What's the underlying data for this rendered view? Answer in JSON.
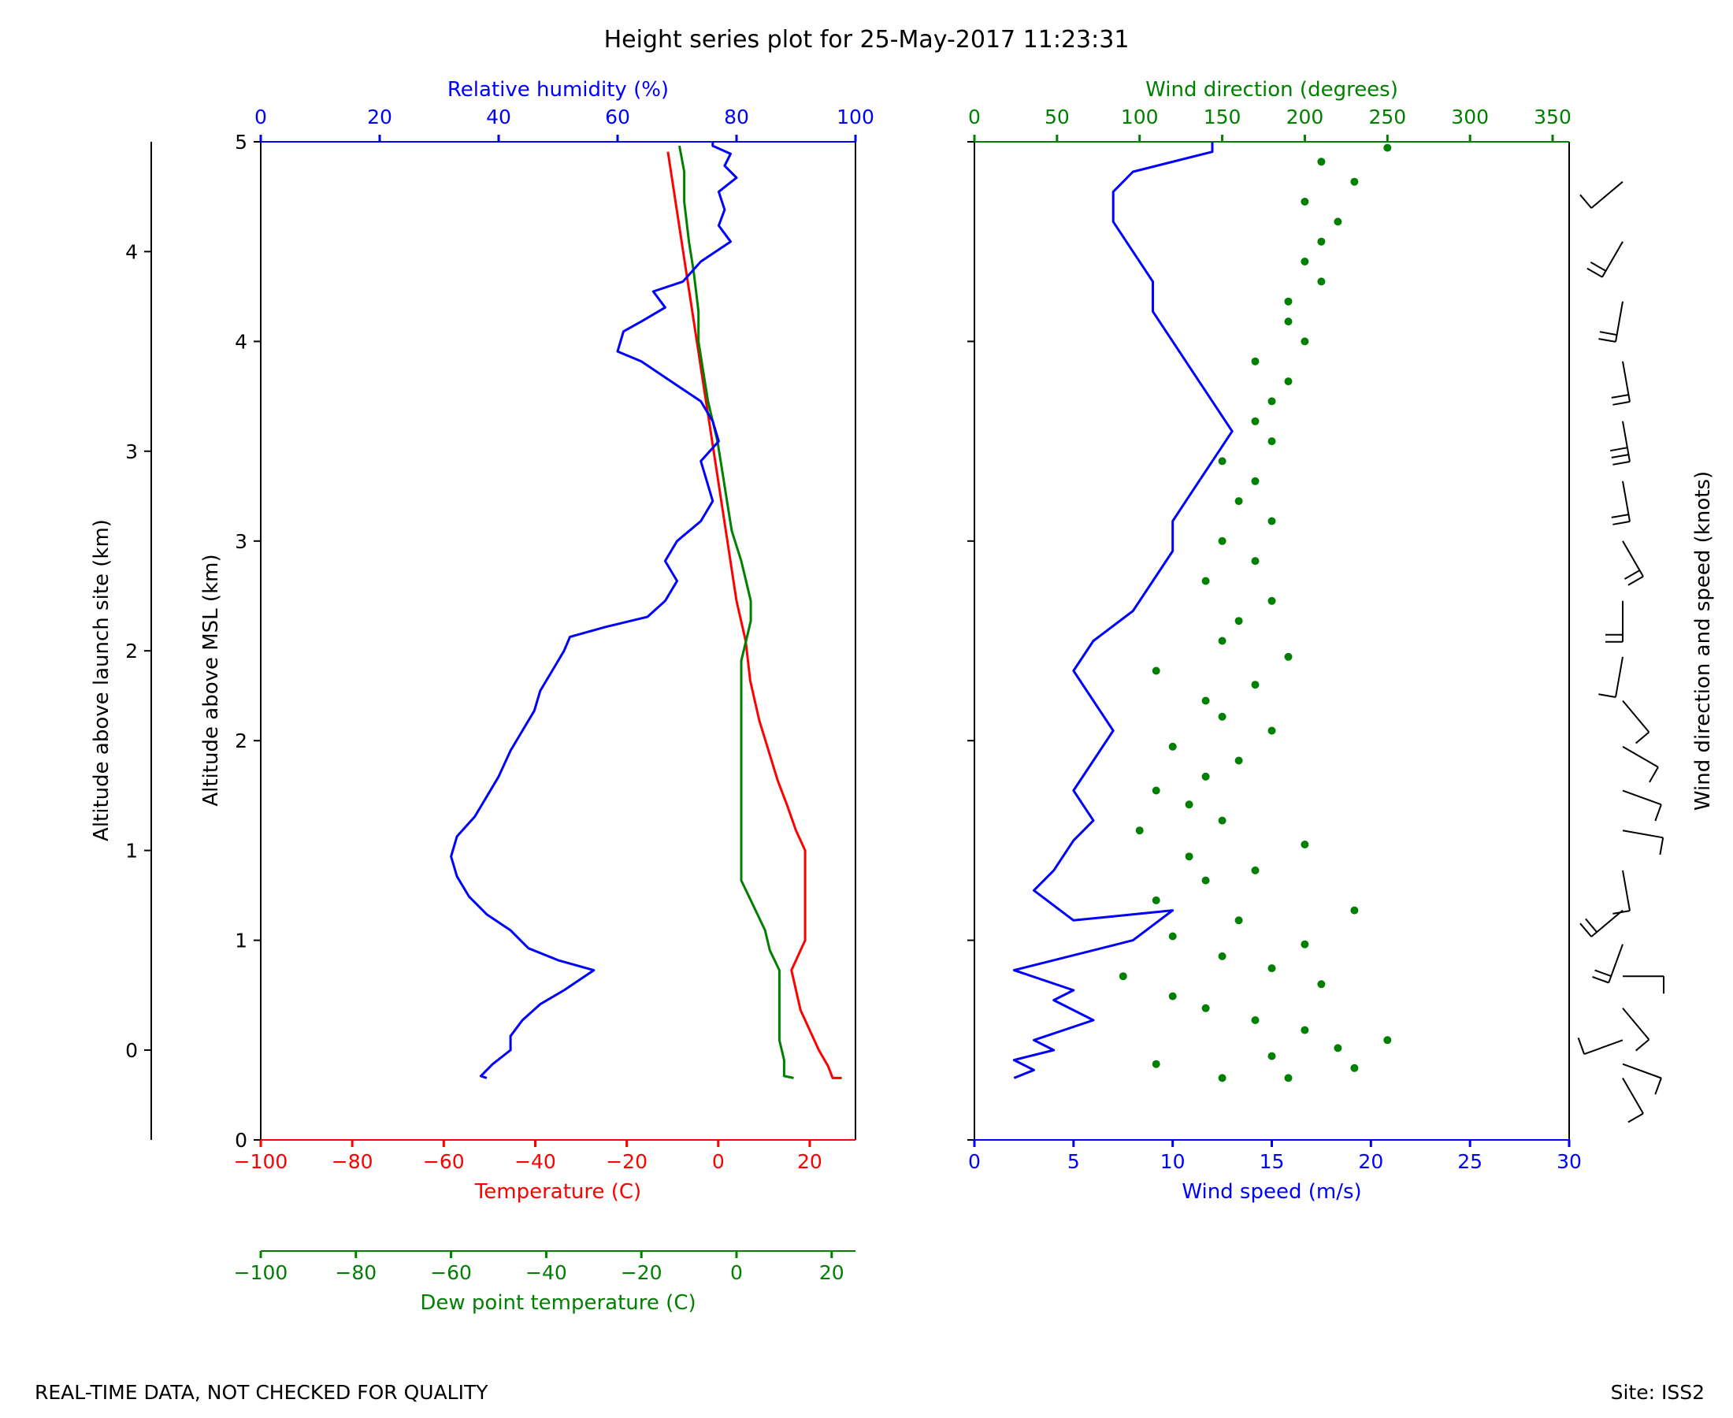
{
  "title": "Height series plot for 25-May-2017 11:23:31",
  "footer_left": "REAL-TIME DATA, NOT CHECKED FOR QUALITY",
  "footer_right": "Site: ISS2",
  "colors": {
    "red": "#ff0000",
    "blue": "#0000ff",
    "green": "#008000",
    "black": "#000000"
  },
  "chart_data": [
    {
      "type": "line",
      "title": "Thermodynamic profile",
      "y_axis": {
        "label": "Altitude above MSL (km)",
        "range": [
          0,
          5
        ],
        "ticks": [
          0,
          1,
          2,
          3,
          4,
          5
        ],
        "tick_labels": [
          "0",
          "1",
          "2",
          "3",
          "4",
          "5"
        ]
      },
      "y_axis_launch": {
        "label": "Altitude above launch site (km)",
        "range": [
          -0.45,
          4.55
        ],
        "ticks": [
          0,
          1,
          2,
          3,
          4
        ],
        "tick_labels": [
          "0",
          "1",
          "2",
          "3",
          "4"
        ]
      },
      "x_axis_temperature": {
        "label": "Temperature (C)",
        "range": [
          -100,
          30
        ],
        "ticks": [
          -100,
          -80,
          -60,
          -40,
          -20,
          0,
          20
        ],
        "tick_labels": [
          "−100",
          "−80",
          "−60",
          "−40",
          "−20",
          "0",
          "20"
        ]
      },
      "x_axis_dewpoint": {
        "label": "Dew point temperature (C)",
        "range": [
          -100,
          25
        ],
        "ticks": [
          -100,
          -80,
          -60,
          -40,
          -20,
          0,
          20
        ],
        "tick_labels": [
          "−100",
          "−80",
          "−60",
          "−40",
          "−20",
          "0",
          "20"
        ]
      },
      "x_axis_rh": {
        "label": "Relative humidity (%)",
        "range": [
          0,
          100
        ],
        "ticks": [
          0,
          20,
          40,
          60,
          80,
          100
        ],
        "tick_labels": [
          "0",
          "20",
          "40",
          "60",
          "80",
          "100"
        ]
      },
      "series": [
        {
          "name": "Temperature",
          "axis": "temperature",
          "color": "#ff0000",
          "points": [
            [
              27,
              0.31
            ],
            [
              25,
              0.31
            ],
            [
              24,
              0.37
            ],
            [
              22,
              0.45
            ],
            [
              20,
              0.55
            ],
            [
              18,
              0.65
            ],
            [
              17,
              0.75
            ],
            [
              16,
              0.85
            ],
            [
              19,
              1.0
            ],
            [
              19,
              1.2
            ],
            [
              19,
              1.35
            ],
            [
              19,
              1.45
            ],
            [
              17,
              1.55
            ],
            [
              15,
              1.68
            ],
            [
              13,
              1.8
            ],
            [
              11,
              1.95
            ],
            [
              9,
              2.1
            ],
            [
              7,
              2.3
            ],
            [
              6,
              2.5
            ],
            [
              4,
              2.7
            ],
            [
              3,
              2.85
            ],
            [
              2,
              3.0
            ],
            [
              1,
              3.15
            ],
            [
              0,
              3.3
            ],
            [
              -1,
              3.45
            ],
            [
              -2,
              3.6
            ],
            [
              -3,
              3.75
            ],
            [
              -4,
              3.9
            ],
            [
              -5,
              4.05
            ],
            [
              -6,
              4.2
            ],
            [
              -7,
              4.35
            ],
            [
              -8,
              4.5
            ],
            [
              -9,
              4.65
            ],
            [
              -10,
              4.8
            ],
            [
              -11,
              4.95
            ]
          ]
        },
        {
          "name": "Dew point temperature",
          "axis": "dewpoint",
          "color": "#008000",
          "points": [
            [
              12,
              0.31
            ],
            [
              10,
              0.32
            ],
            [
              10,
              0.4
            ],
            [
              9,
              0.5
            ],
            [
              9,
              0.6
            ],
            [
              9,
              0.7
            ],
            [
              9,
              0.85
            ],
            [
              7,
              0.95
            ],
            [
              6,
              1.05
            ],
            [
              4,
              1.15
            ],
            [
              1,
              1.3
            ],
            [
              1,
              1.45
            ],
            [
              1,
              1.6
            ],
            [
              1,
              1.8
            ],
            [
              1,
              2.0
            ],
            [
              1,
              2.2
            ],
            [
              1,
              2.4
            ],
            [
              2,
              2.5
            ],
            [
              3,
              2.6
            ],
            [
              3,
              2.7
            ],
            [
              2,
              2.8
            ],
            [
              1,
              2.9
            ],
            [
              -1,
              3.05
            ],
            [
              -2,
              3.2
            ],
            [
              -3,
              3.35
            ],
            [
              -4,
              3.5
            ],
            [
              -6,
              3.7
            ],
            [
              -7,
              3.85
            ],
            [
              -8,
              4.0
            ],
            [
              -8,
              4.15
            ],
            [
              -9,
              4.35
            ],
            [
              -10,
              4.5
            ],
            [
              -11,
              4.7
            ],
            [
              -11,
              4.85
            ],
            [
              -12,
              4.98
            ]
          ]
        },
        {
          "name": "Relative humidity",
          "axis": "rh",
          "color": "#0000ff",
          "points": [
            [
              38,
              0.31
            ],
            [
              37,
              0.32
            ],
            [
              39,
              0.38
            ],
            [
              42,
              0.45
            ],
            [
              42,
              0.52
            ],
            [
              44,
              0.6
            ],
            [
              47,
              0.68
            ],
            [
              51,
              0.75
            ],
            [
              56,
              0.85
            ],
            [
              50,
              0.9
            ],
            [
              45,
              0.96
            ],
            [
              42,
              1.05
            ],
            [
              38,
              1.13
            ],
            [
              35,
              1.22
            ],
            [
              33,
              1.32
            ],
            [
              32,
              1.42
            ],
            [
              33,
              1.52
            ],
            [
              36,
              1.62
            ],
            [
              38,
              1.72
            ],
            [
              40,
              1.82
            ],
            [
              42,
              1.95
            ],
            [
              44,
              2.05
            ],
            [
              46,
              2.15
            ],
            [
              47,
              2.25
            ],
            [
              49,
              2.35
            ],
            [
              51,
              2.45
            ],
            [
              52,
              2.52
            ],
            [
              58,
              2.57
            ],
            [
              65,
              2.62
            ],
            [
              68,
              2.7
            ],
            [
              70,
              2.8
            ],
            [
              68,
              2.9
            ],
            [
              70,
              3.0
            ],
            [
              74,
              3.1
            ],
            [
              76,
              3.2
            ],
            [
              75,
              3.3
            ],
            [
              74,
              3.4
            ],
            [
              77,
              3.5
            ],
            [
              76,
              3.6
            ],
            [
              74,
              3.7
            ],
            [
              69,
              3.8
            ],
            [
              64,
              3.9
            ],
            [
              60,
              3.95
            ],
            [
              61,
              4.05
            ],
            [
              64,
              4.1
            ],
            [
              68,
              4.17
            ],
            [
              66,
              4.25
            ],
            [
              71,
              4.3
            ],
            [
              74,
              4.4
            ],
            [
              79,
              4.5
            ],
            [
              77,
              4.58
            ],
            [
              78,
              4.66
            ],
            [
              77,
              4.75
            ],
            [
              80,
              4.82
            ],
            [
              78,
              4.88
            ],
            [
              79,
              4.94
            ],
            [
              76,
              4.98
            ],
            [
              76,
              5.0
            ]
          ]
        }
      ]
    },
    {
      "type": "line",
      "title": "Wind profile",
      "y_axis": {
        "label": "",
        "range": [
          0,
          5
        ],
        "ticks": [
          0,
          1,
          2,
          3,
          4,
          5
        ]
      },
      "x_axis_speed": {
        "label": "Wind speed (m/s)",
        "range": [
          0,
          30
        ],
        "ticks": [
          0,
          5,
          10,
          15,
          20,
          25,
          30
        ],
        "tick_labels": [
          "0",
          "5",
          "10",
          "15",
          "20",
          "25",
          "30"
        ]
      },
      "x_axis_direction": {
        "label": "Wind direction (degrees)",
        "range": [
          0,
          360
        ],
        "ticks": [
          0,
          50,
          100,
          150,
          200,
          250,
          300,
          350
        ],
        "tick_labels": [
          "0",
          "50",
          "100",
          "150",
          "200",
          "250",
          "300",
          "350"
        ]
      },
      "right_label": "Wind direction and speed (knots)",
      "speed_series": {
        "name": "Wind speed",
        "color": "#0000ff",
        "points": [
          [
            2,
            0.31
          ],
          [
            3,
            0.35
          ],
          [
            2,
            0.4
          ],
          [
            4,
            0.45
          ],
          [
            3,
            0.5
          ],
          [
            6,
            0.6
          ],
          [
            4,
            0.7
          ],
          [
            5,
            0.75
          ],
          [
            2,
            0.85
          ],
          [
            8,
            1.0
          ],
          [
            10,
            1.15
          ],
          [
            5,
            1.1
          ],
          [
            3,
            1.25
          ],
          [
            4,
            1.35
          ],
          [
            5,
            1.5
          ],
          [
            6,
            1.6
          ],
          [
            5,
            1.75
          ],
          [
            6,
            1.9
          ],
          [
            7,
            2.05
          ],
          [
            6,
            2.2
          ],
          [
            5,
            2.35
          ],
          [
            6,
            2.5
          ],
          [
            8,
            2.65
          ],
          [
            9,
            2.8
          ],
          [
            10,
            2.95
          ],
          [
            10,
            3.1
          ],
          [
            11,
            3.25
          ],
          [
            12,
            3.4
          ],
          [
            13,
            3.55
          ],
          [
            12,
            3.7
          ],
          [
            11,
            3.85
          ],
          [
            10,
            4.0
          ],
          [
            9,
            4.15
          ],
          [
            9,
            4.3
          ],
          [
            8,
            4.45
          ],
          [
            7,
            4.6
          ],
          [
            7,
            4.75
          ],
          [
            8,
            4.85
          ],
          [
            12,
            4.95
          ],
          [
            12,
            5.0
          ]
        ]
      },
      "direction_series": {
        "name": "Wind direction",
        "color": "#008000",
        "points": [
          [
            150,
            0.31
          ],
          [
            190,
            0.31
          ],
          [
            230,
            0.36
          ],
          [
            110,
            0.38
          ],
          [
            180,
            0.42
          ],
          [
            220,
            0.46
          ],
          [
            250,
            0.5
          ],
          [
            200,
            0.55
          ],
          [
            170,
            0.6
          ],
          [
            140,
            0.66
          ],
          [
            120,
            0.72
          ],
          [
            210,
            0.78
          ],
          [
            90,
            0.82
          ],
          [
            180,
            0.86
          ],
          [
            150,
            0.92
          ],
          [
            200,
            0.98
          ],
          [
            120,
            1.02
          ],
          [
            160,
            1.1
          ],
          [
            230,
            1.15
          ],
          [
            110,
            1.2
          ],
          [
            140,
            1.3
          ],
          [
            170,
            1.35
          ],
          [
            130,
            1.42
          ],
          [
            200,
            1.48
          ],
          [
            100,
            1.55
          ],
          [
            150,
            1.6
          ],
          [
            130,
            1.68
          ],
          [
            110,
            1.75
          ],
          [
            140,
            1.82
          ],
          [
            160,
            1.9
          ],
          [
            120,
            1.97
          ],
          [
            180,
            2.05
          ],
          [
            150,
            2.12
          ],
          [
            140,
            2.2
          ],
          [
            170,
            2.28
          ],
          [
            110,
            2.35
          ],
          [
            190,
            2.42
          ],
          [
            150,
            2.5
          ],
          [
            160,
            2.6
          ],
          [
            180,
            2.7
          ],
          [
            140,
            2.8
          ],
          [
            170,
            2.9
          ],
          [
            150,
            3.0
          ],
          [
            180,
            3.1
          ],
          [
            160,
            3.2
          ],
          [
            170,
            3.3
          ],
          [
            150,
            3.4
          ],
          [
            180,
            3.5
          ],
          [
            170,
            3.6
          ],
          [
            180,
            3.7
          ],
          [
            190,
            3.8
          ],
          [
            170,
            3.9
          ],
          [
            200,
            4.0
          ],
          [
            190,
            4.1
          ],
          [
            190,
            4.2
          ],
          [
            210,
            4.3
          ],
          [
            200,
            4.4
          ],
          [
            210,
            4.5
          ],
          [
            220,
            4.6
          ],
          [
            200,
            4.7
          ],
          [
            230,
            4.8
          ],
          [
            210,
            4.9
          ],
          [
            250,
            4.97
          ]
        ]
      }
    }
  ]
}
